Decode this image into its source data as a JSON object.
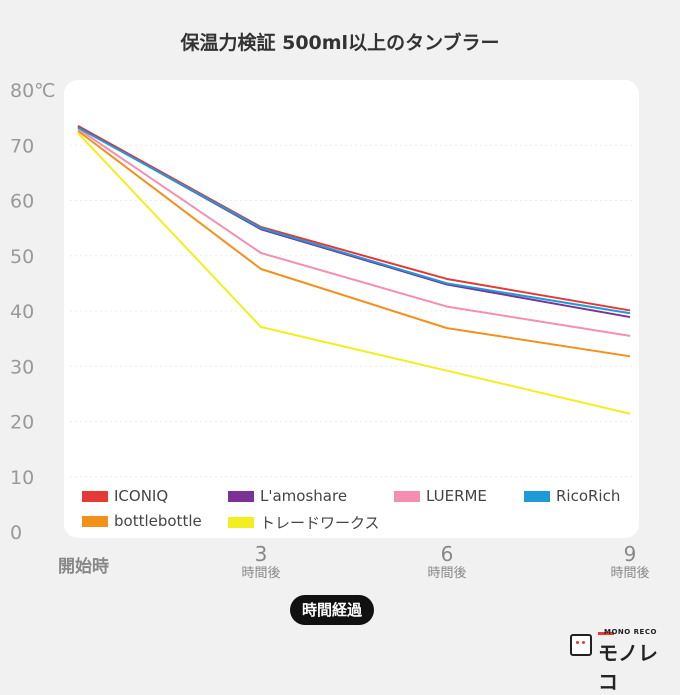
{
  "chart_data": {
    "type": "line",
    "title": "保温力検証 500ml以上のタンブラー",
    "xlabel": "時間経過",
    "ylabel": "",
    "ylim": [
      0,
      80
    ],
    "y_ticks": [
      "0",
      "10",
      "20",
      "30",
      "40",
      "50",
      "60",
      "70",
      "80℃"
    ],
    "categories": [
      {
        "num": "開始時",
        "unit": ""
      },
      {
        "num": "3",
        "unit": "時間後"
      },
      {
        "num": "6",
        "unit": "時間後"
      },
      {
        "num": "9",
        "unit": "時間後"
      }
    ],
    "grid": true,
    "legend_position": "bottom",
    "series": [
      {
        "name": "ICONIQ",
        "color": "#e53935",
        "values": [
          73.5,
          55.2,
          45.8,
          40.1
        ]
      },
      {
        "name": "L'amoshare",
        "color": "#7b3294",
        "values": [
          73.3,
          54.8,
          44.8,
          38.9
        ]
      },
      {
        "name": "LUERME",
        "color": "#f48fb1",
        "values": [
          73.0,
          50.5,
          40.8,
          35.5
        ]
      },
      {
        "name": "RicoRich",
        "color": "#1e9bd7",
        "values": [
          73.2,
          55.0,
          45.0,
          39.6
        ]
      },
      {
        "name": "bottlebottle",
        "color": "#f39019",
        "values": [
          72.6,
          47.6,
          36.9,
          31.8
        ]
      },
      {
        "name": "トレードワークス",
        "color": "#f2ee1f",
        "values": [
          72.2,
          37.1,
          29.2,
          21.4
        ]
      }
    ]
  },
  "logo": {
    "small": "MONO RECO",
    "brand": "モノレコ"
  }
}
